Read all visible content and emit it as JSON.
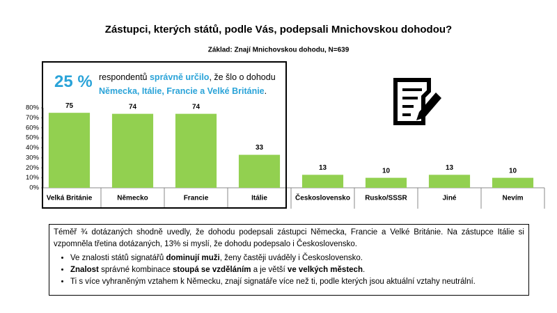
{
  "chart_data": {
    "type": "bar",
    "title": "Zástupci, kterých států, podle Vás, podepsali Mnichovskou dohodou?",
    "subtitle": "Základ: Znají Mnichovskou dohodu, N=639",
    "categories": [
      "Velká Británie",
      "Německo",
      "Francie",
      "Itálie",
      "Československo",
      "Rusko/SSSR",
      "Jiné",
      "Nevím"
    ],
    "values": [
      75,
      74,
      74,
      33,
      13,
      10,
      13,
      10
    ],
    "color": "#92d050",
    "ylim": [
      0,
      80
    ],
    "yticks": [
      {
        "value": 0,
        "label": "0%"
      },
      {
        "value": 10,
        "label": "10%"
      },
      {
        "value": 20,
        "label": "20%"
      },
      {
        "value": 30,
        "label": "30%"
      },
      {
        "value": 40,
        "label": "40%"
      },
      {
        "value": 50,
        "label": "50%"
      },
      {
        "value": 60,
        "label": "60%"
      },
      {
        "value": 70,
        "label": "70%"
      },
      {
        "value": 80,
        "label": "80%"
      }
    ],
    "grid": false
  },
  "callout": {
    "big": "25 %",
    "line1": [
      {
        "text": "respondentů ",
        "bold": false
      },
      {
        "text": "správně určilo",
        "bold": true
      },
      {
        "text": ", že šlo o dohodu",
        "bold": false
      }
    ],
    "line2": [
      {
        "text": "Německa, Itálie, Francie a Velké Británie",
        "bold": true
      },
      {
        "text": ".",
        "bold": false
      }
    ]
  },
  "note": {
    "paragraph": "Téměř ¾ dotázaných shodně uvedly, že dohodu podepsali zástupci Německa, Francie a Velké Británie. Na zástupce Itálie si vzpomněla třetina dotázaných, 13% si myslí, že dohodu podepsalo i Československo.",
    "bullets": [
      [
        {
          "text": "Ve znalosti států signatářů ",
          "bold": false
        },
        {
          "text": "dominují muži",
          "bold": true
        },
        {
          "text": ", ženy častěji uváděly i Československo.",
          "bold": false
        }
      ],
      [
        {
          "text": "Znalost",
          "bold": true
        },
        {
          "text": " správné kombinace ",
          "bold": false
        },
        {
          "text": "stoupá se vzděláním",
          "bold": true
        },
        {
          "text": " a je větší ",
          "bold": false
        },
        {
          "text": "ve velkých městech",
          "bold": true
        },
        {
          "text": ".",
          "bold": false
        }
      ],
      [
        {
          "text": "Ti s více vyhraněným vztahem k Německu, znají signatáře více než ti, podle kterých jsou aktuální vztahy neutrální.",
          "bold": false
        }
      ]
    ]
  }
}
